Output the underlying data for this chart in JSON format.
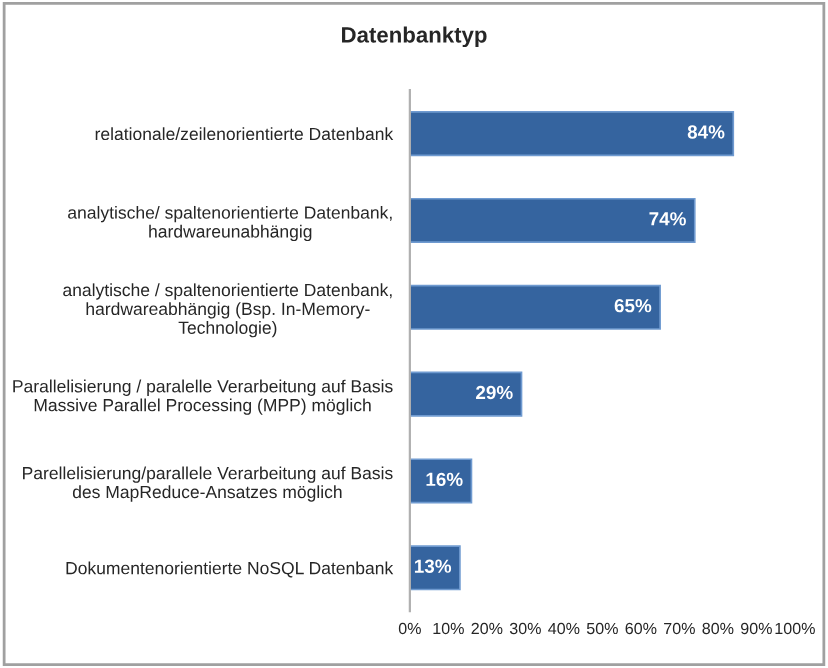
{
  "chart_data": {
    "type": "bar",
    "orientation": "horizontal",
    "title": "Datenbanktyp",
    "categories": [
      "relationale/zeilenorientierte Datenbank",
      "analytische/ spaltenorientierte Datenbank,\nhardwareunabhängig",
      "analytische / spaltenorientierte Datenbank,\nhardwareabhängig (Bsp. In-Memory-\nTechnologie)",
      "Parallelisierung / paralelle Verarbeitung auf Basis\nMassive Parallel Processing (MPP) möglich",
      "Parellelisierung/parallele Verarbeitung auf Basis\ndes MapReduce-Ansatzes möglich",
      "Dokumentenorientierte NoSQL Datenbank"
    ],
    "values": [
      84,
      74,
      65,
      29,
      16,
      13
    ],
    "value_labels": [
      "84%",
      "74%",
      "65%",
      "29%",
      "16%",
      "13%"
    ],
    "color": "#35649f",
    "xlim": [
      0,
      100
    ],
    "xticks": [
      {
        "value": 0,
        "label": "0%"
      },
      {
        "value": 10,
        "label": "10%"
      },
      {
        "value": 20,
        "label": "20%"
      },
      {
        "value": 30,
        "label": "30%"
      },
      {
        "value": 40,
        "label": "40%"
      },
      {
        "value": 50,
        "label": "50%"
      },
      {
        "value": 60,
        "label": "60%"
      },
      {
        "value": 70,
        "label": "70%"
      },
      {
        "value": 80,
        "label": "80%"
      },
      {
        "value": 90,
        "label": "90%"
      },
      {
        "value": 100,
        "label": "100%"
      }
    ],
    "grid": false,
    "legend": false
  }
}
